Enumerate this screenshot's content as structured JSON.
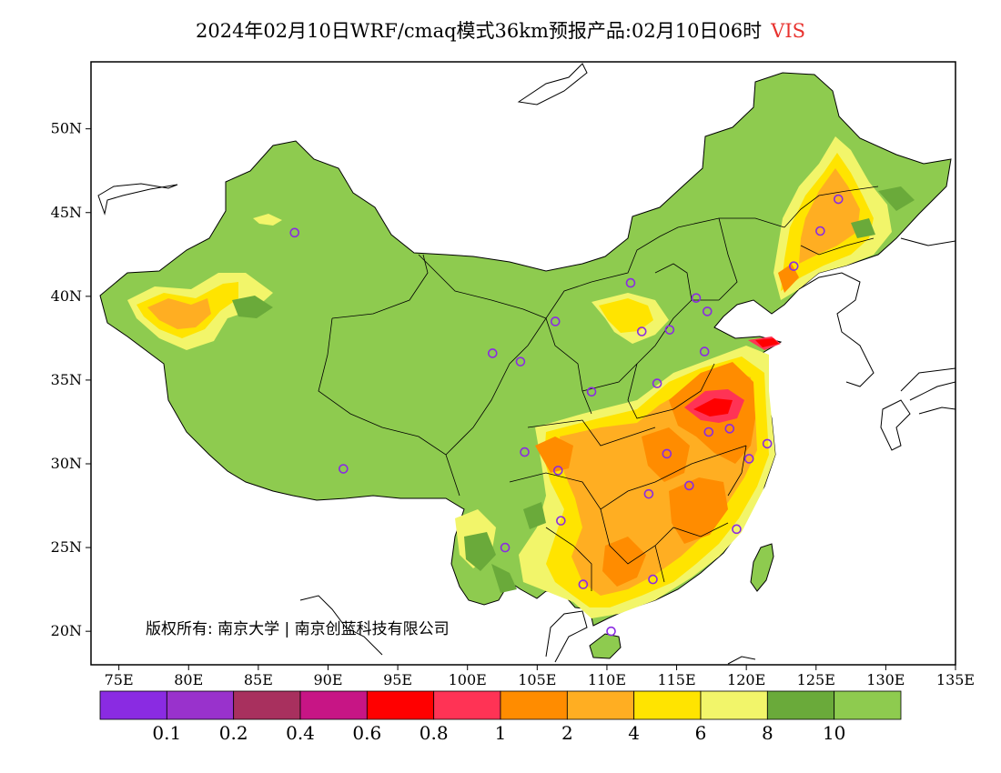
{
  "title": {
    "main": "2024年02月10日WRF/cmaq模式36km预报产品:02月10日06时",
    "variable": "VIS"
  },
  "colors": {
    "background": "#ffffff",
    "ocean": "#ffffff",
    "outside_land": "#ffffff",
    "base_land": "#8ecb4f",
    "title_variable": "#e8322e",
    "station_marker": "#8a2be2",
    "border": "#000000"
  },
  "map": {
    "lon_range": [
      73,
      135
    ],
    "lat_range": [
      18,
      54
    ],
    "lon_ticks": [
      "75E",
      "80E",
      "85E",
      "90E",
      "95E",
      "100E",
      "105E",
      "110E",
      "115E",
      "120E",
      "125E",
      "130E",
      "135E"
    ],
    "lon_tick_values": [
      75,
      80,
      85,
      90,
      95,
      100,
      105,
      110,
      115,
      120,
      125,
      130,
      135
    ],
    "lat_ticks": [
      "20N",
      "25N",
      "30N",
      "35N",
      "40N",
      "45N",
      "50N"
    ],
    "lat_tick_values": [
      20,
      25,
      30,
      35,
      40,
      45,
      50
    ],
    "copyright": "版权所有: 南京大学 | 南京创蓝科技有限公司",
    "stations": [
      [
        87.6,
        43.8
      ],
      [
        91.1,
        29.7
      ],
      [
        101.8,
        36.6
      ],
      [
        103.8,
        36.1
      ],
      [
        106.3,
        38.5
      ],
      [
        108.9,
        34.3
      ],
      [
        111.7,
        40.8
      ],
      [
        112.5,
        37.9
      ],
      [
        114.5,
        38.0
      ],
      [
        116.4,
        39.9
      ],
      [
        117.2,
        39.1
      ],
      [
        117.0,
        36.7
      ],
      [
        113.6,
        34.8
      ],
      [
        117.3,
        31.9
      ],
      [
        118.8,
        32.1
      ],
      [
        121.5,
        31.2
      ],
      [
        120.2,
        30.3
      ],
      [
        114.3,
        30.6
      ],
      [
        113.0,
        28.2
      ],
      [
        115.9,
        28.7
      ],
      [
        119.3,
        26.1
      ],
      [
        113.3,
        23.1
      ],
      [
        108.3,
        22.8
      ],
      [
        110.3,
        20.0
      ],
      [
        106.7,
        26.6
      ],
      [
        106.5,
        29.6
      ],
      [
        104.1,
        30.7
      ],
      [
        102.7,
        25.0
      ],
      [
        123.4,
        41.8
      ],
      [
        125.3,
        43.9
      ],
      [
        126.6,
        45.8
      ]
    ]
  },
  "legend": {
    "colors": [
      "#8a2be2",
      "#9932cc",
      "#a8305e",
      "#c71585",
      "#ff0000",
      "#ff3355",
      "#ff8c00",
      "#ffae22",
      "#ffe400",
      "#f2f56a",
      "#6aaa3a",
      "#8ecb4f"
    ],
    "labels": [
      "0.1",
      "0.2",
      "0.4",
      "0.6",
      "0.8",
      "1",
      "2",
      "4",
      "6",
      "8",
      "10"
    ]
  }
}
